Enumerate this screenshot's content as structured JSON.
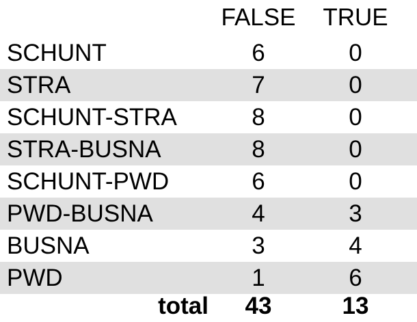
{
  "chart_data": {
    "type": "table",
    "columns": [
      "FALSE",
      "TRUE"
    ],
    "rows": [
      {
        "label": "SCHUNT",
        "false": 6,
        "true": 0
      },
      {
        "label": "STRA",
        "false": 7,
        "true": 0
      },
      {
        "label": "SCHUNT-STRA",
        "false": 8,
        "true": 0
      },
      {
        "label": "STRA-BUSNA",
        "false": 8,
        "true": 0
      },
      {
        "label": "SCHUNT-PWD",
        "false": 6,
        "true": 0
      },
      {
        "label": "PWD-BUSNA",
        "false": 4,
        "true": 3
      },
      {
        "label": "BUSNA",
        "false": 3,
        "true": 4
      },
      {
        "label": "PWD",
        "false": 1,
        "true": 6
      }
    ],
    "total": {
      "label": "total",
      "false": 43,
      "true": 13
    }
  },
  "colors": {
    "stripe": "#e0e0e0",
    "text": "#000000",
    "background": "#ffffff"
  }
}
